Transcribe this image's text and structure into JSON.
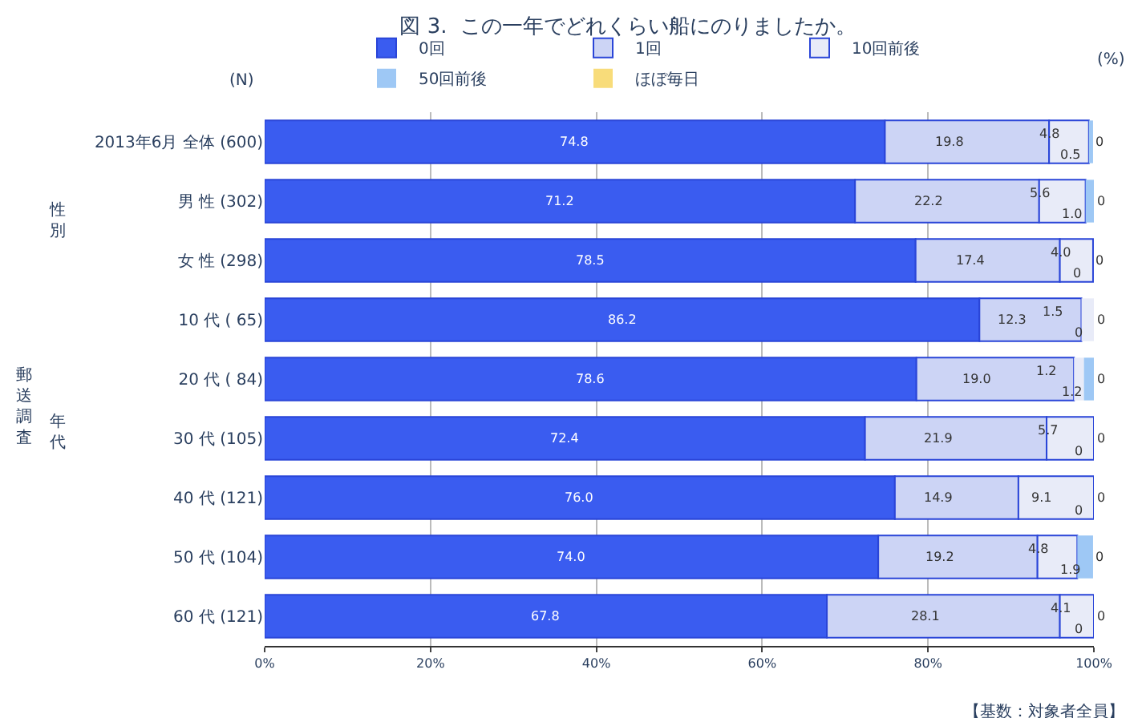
{
  "chart_data": {
    "type": "bar",
    "orientation": "horizontal",
    "stacked": true,
    "title": "図 3.  この一年でどれくらい船にのりましたか。",
    "categories": [
      "2013年6月 全体 (600)",
      "男 性 (302)",
      "女 性 (298)",
      "10 代 ( 65)",
      "20 代 ( 84)",
      "30 代 (105)",
      "40 代 (121)",
      "50 代 (104)",
      "60 代 (121)"
    ],
    "series": [
      {
        "name": "0回",
        "color": "#3a5cf0",
        "values": [
          74.8,
          71.2,
          78.5,
          86.2,
          78.6,
          72.4,
          76.0,
          74.0,
          67.8
        ],
        "value_labels": [
          "74.8",
          "71.2",
          "78.5",
          "86.2",
          "78.6",
          "72.4",
          "76.0",
          "74.0",
          "67.8"
        ]
      },
      {
        "name": "1回",
        "color": "#ccd4f5",
        "values": [
          19.8,
          22.2,
          17.4,
          12.3,
          19.0,
          21.9,
          14.9,
          19.2,
          28.1
        ],
        "value_labels": [
          "19.8",
          "22.2",
          "17.4",
          "12.3",
          "19.0",
          "21.9",
          "14.9",
          "19.2",
          "28.1"
        ]
      },
      {
        "name": "10回前後",
        "color": "#e8ebf8",
        "values": [
          4.8,
          5.6,
          4.0,
          1.5,
          1.2,
          5.7,
          9.1,
          4.8,
          4.1
        ],
        "value_labels": [
          "4.8",
          "5.6",
          "4.0",
          "1.5",
          "1.2",
          "5.7",
          "9.1",
          "4.8",
          "4.1"
        ]
      },
      {
        "name": "50回前後",
        "color": "#9ec8f5",
        "values": [
          0.5,
          1.0,
          0,
          0,
          1.2,
          0,
          0,
          1.9,
          0
        ],
        "value_labels": [
          "0.5",
          "1.0",
          "0",
          "0",
          "1.2",
          "0",
          "0",
          "1.9",
          "0"
        ]
      },
      {
        "name": "ほぼ毎日",
        "color": "#f8dc7a",
        "values": [
          0,
          0,
          0,
          0,
          0,
          0,
          0,
          0,
          0
        ],
        "value_labels": [
          "0",
          "0",
          "0",
          "0",
          "0",
          "0",
          "0",
          "0",
          "0"
        ]
      }
    ],
    "xlim": [
      0,
      100
    ],
    "xticks": [
      {
        "value": 0,
        "label": "0%"
      },
      {
        "value": 20,
        "label": "20%"
      },
      {
        "value": 40,
        "label": "40%"
      },
      {
        "value": 60,
        "label": "60%"
      },
      {
        "value": 80,
        "label": "80%"
      },
      {
        "value": 100,
        "label": "100%"
      }
    ],
    "grid": "x",
    "legend": "top",
    "annotations": [
      "(N)",
      "(%)",
      "郵送調査",
      "性別",
      "年代",
      "【基数：対象者全員】"
    ]
  }
}
